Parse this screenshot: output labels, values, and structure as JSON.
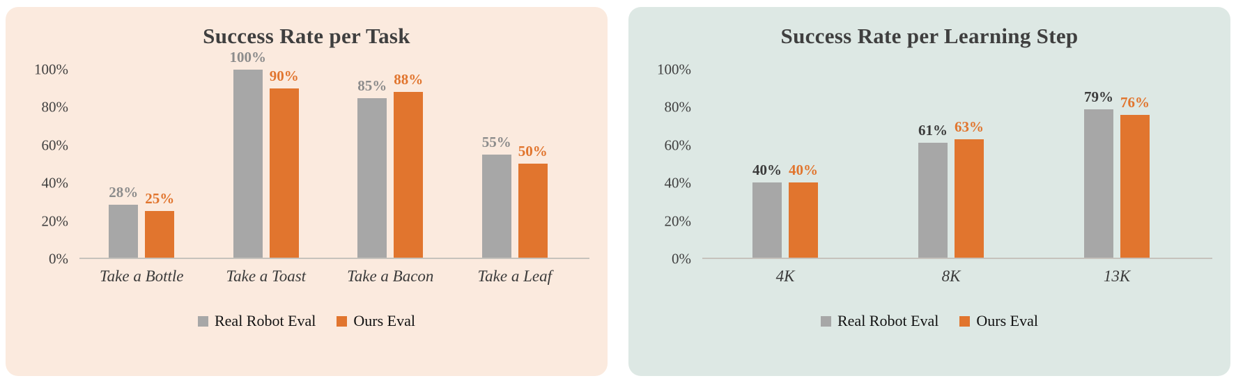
{
  "colors": {
    "gray_series": "#a7a7a7",
    "orange_series": "#e1752e",
    "left_panel_bg": "#fbeade",
    "right_panel_bg": "#dde8e4",
    "title_text": "#3f3f3f",
    "axis_text": "#3f3f3f"
  },
  "chart_data": [
    {
      "type": "bar",
      "title": "Success Rate per Task",
      "panel_bg": "#fbeade",
      "categories": [
        "Take a Bottle",
        "Take a Toast",
        "Take a Bacon",
        "Take a Leaf"
      ],
      "series": [
        {
          "name": "Real Robot Eval",
          "color": "#a7a7a7",
          "label_color": "#8c8c8c",
          "values": [
            28,
            100,
            85,
            55
          ],
          "labels": [
            "28%",
            "100%",
            "85%",
            "55%"
          ]
        },
        {
          "name": "Ours Eval",
          "color": "#e1752e",
          "label_color": "#e1752e",
          "values": [
            25,
            90,
            88,
            50
          ],
          "labels": [
            "25%",
            "90%",
            "88%",
            "50%"
          ]
        }
      ],
      "xlabel": "",
      "ylabel": "",
      "ylim": [
        0,
        100
      ],
      "yticks": [
        {
          "label": "0%",
          "value": 0
        },
        {
          "label": "20%",
          "value": 20
        },
        {
          "label": "40%",
          "value": 40
        },
        {
          "label": "60%",
          "value": 60
        },
        {
          "label": "80%",
          "value": 80
        },
        {
          "label": "100%",
          "value": 100
        }
      ],
      "grid": false,
      "legend_position": "bottom"
    },
    {
      "type": "bar",
      "title": "Success Rate per Learning Step",
      "panel_bg": "#dde8e4",
      "categories": [
        "4K",
        "8K",
        "13K"
      ],
      "series": [
        {
          "name": "Real Robot Eval",
          "color": "#a7a7a7",
          "label_color": "#3b3b3b",
          "values": [
            40,
            61,
            79
          ],
          "labels": [
            "40%",
            "61%",
            "79%"
          ]
        },
        {
          "name": "Ours Eval",
          "color": "#e1752e",
          "label_color": "#e1752e",
          "values": [
            40,
            63,
            76
          ],
          "labels": [
            "40%",
            "63%",
            "76%"
          ]
        }
      ],
      "xlabel": "",
      "ylabel": "",
      "ylim": [
        0,
        100
      ],
      "yticks": [
        {
          "label": "0%",
          "value": 0
        },
        {
          "label": "20%",
          "value": 20
        },
        {
          "label": "40%",
          "value": 40
        },
        {
          "label": "60%",
          "value": 60
        },
        {
          "label": "80%",
          "value": 80
        },
        {
          "label": "100%",
          "value": 100
        }
      ],
      "grid": false,
      "legend_position": "bottom"
    }
  ]
}
